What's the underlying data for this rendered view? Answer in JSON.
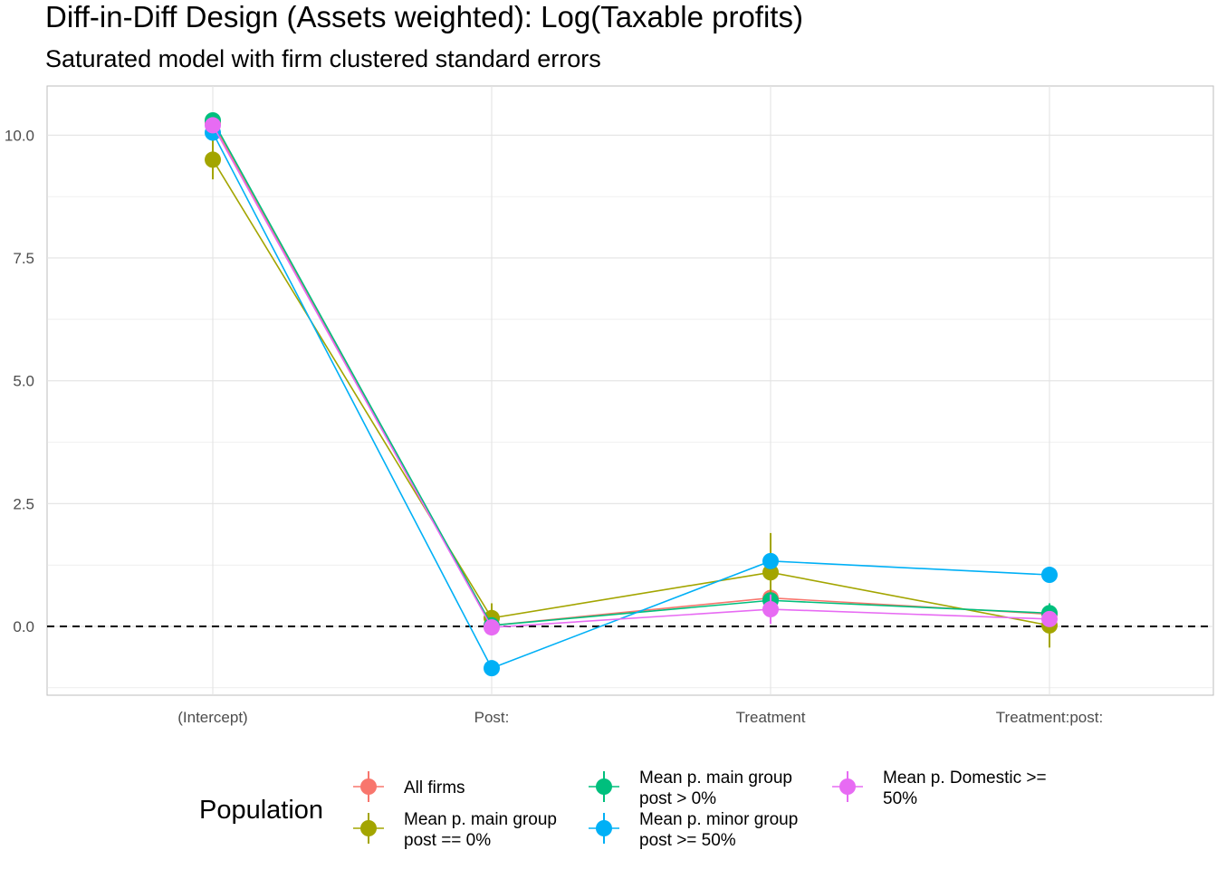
{
  "chart_data": {
    "type": "line",
    "title": "Diff-in-Diff Design (Assets weighted): Log(Taxable profits)",
    "subtitle": "Saturated model with firm clustered standard errors",
    "xlabel": "",
    "ylabel": "",
    "categories": [
      "(Intercept)",
      "Post:",
      "Treatment",
      "Treatment:post:"
    ],
    "y_ticks": [
      "0.0",
      "2.5",
      "5.0",
      "7.5",
      "10.0"
    ],
    "ylim": [
      -1.4,
      11.0
    ],
    "reference_line": {
      "y": 0,
      "style": "dashed",
      "color": "#000000"
    },
    "grid": true,
    "legend": {
      "title": "Population",
      "position": "bottom"
    },
    "series": [
      {
        "name": "All firms",
        "color": "#F8766D",
        "values": [
          10.25,
          0.02,
          0.58,
          0.25
        ],
        "errors": [
          0.12,
          0.08,
          0.15,
          0.12
        ]
      },
      {
        "name": "Mean p. main group post == 0%",
        "color": "#A3A500",
        "values": [
          9.5,
          0.17,
          1.1,
          0.02
        ],
        "errors": [
          0.4,
          0.3,
          0.8,
          0.45
        ]
      },
      {
        "name": "Mean p. main group post > 0%",
        "color": "#00BF7D",
        "values": [
          10.3,
          0.02,
          0.53,
          0.27
        ],
        "errors": [
          0.12,
          0.08,
          0.15,
          0.2
        ]
      },
      {
        "name": "Mean p. minor group post >= 50%",
        "color": "#00B0F6",
        "values": [
          10.05,
          -0.85,
          1.33,
          1.05
        ],
        "errors": [
          0.1,
          0.05,
          0.1,
          0.05
        ]
      },
      {
        "name": "Mean p. Domestic >= 50%",
        "color": "#E76BF3",
        "values": [
          10.2,
          -0.02,
          0.35,
          0.15
        ],
        "errors": [
          0.12,
          0.05,
          0.3,
          0.1
        ]
      }
    ]
  },
  "legend_items": [
    {
      "line1": "All firms",
      "line2": ""
    },
    {
      "line1": "Mean p. main group",
      "line2": "post == 0%"
    },
    {
      "line1": "Mean p. main group",
      "line2": "post > 0%"
    },
    {
      "line1": "Mean p. minor group",
      "line2": "post >= 50%"
    },
    {
      "line1": "Mean p. Domestic >=",
      "line2": "50%"
    }
  ]
}
